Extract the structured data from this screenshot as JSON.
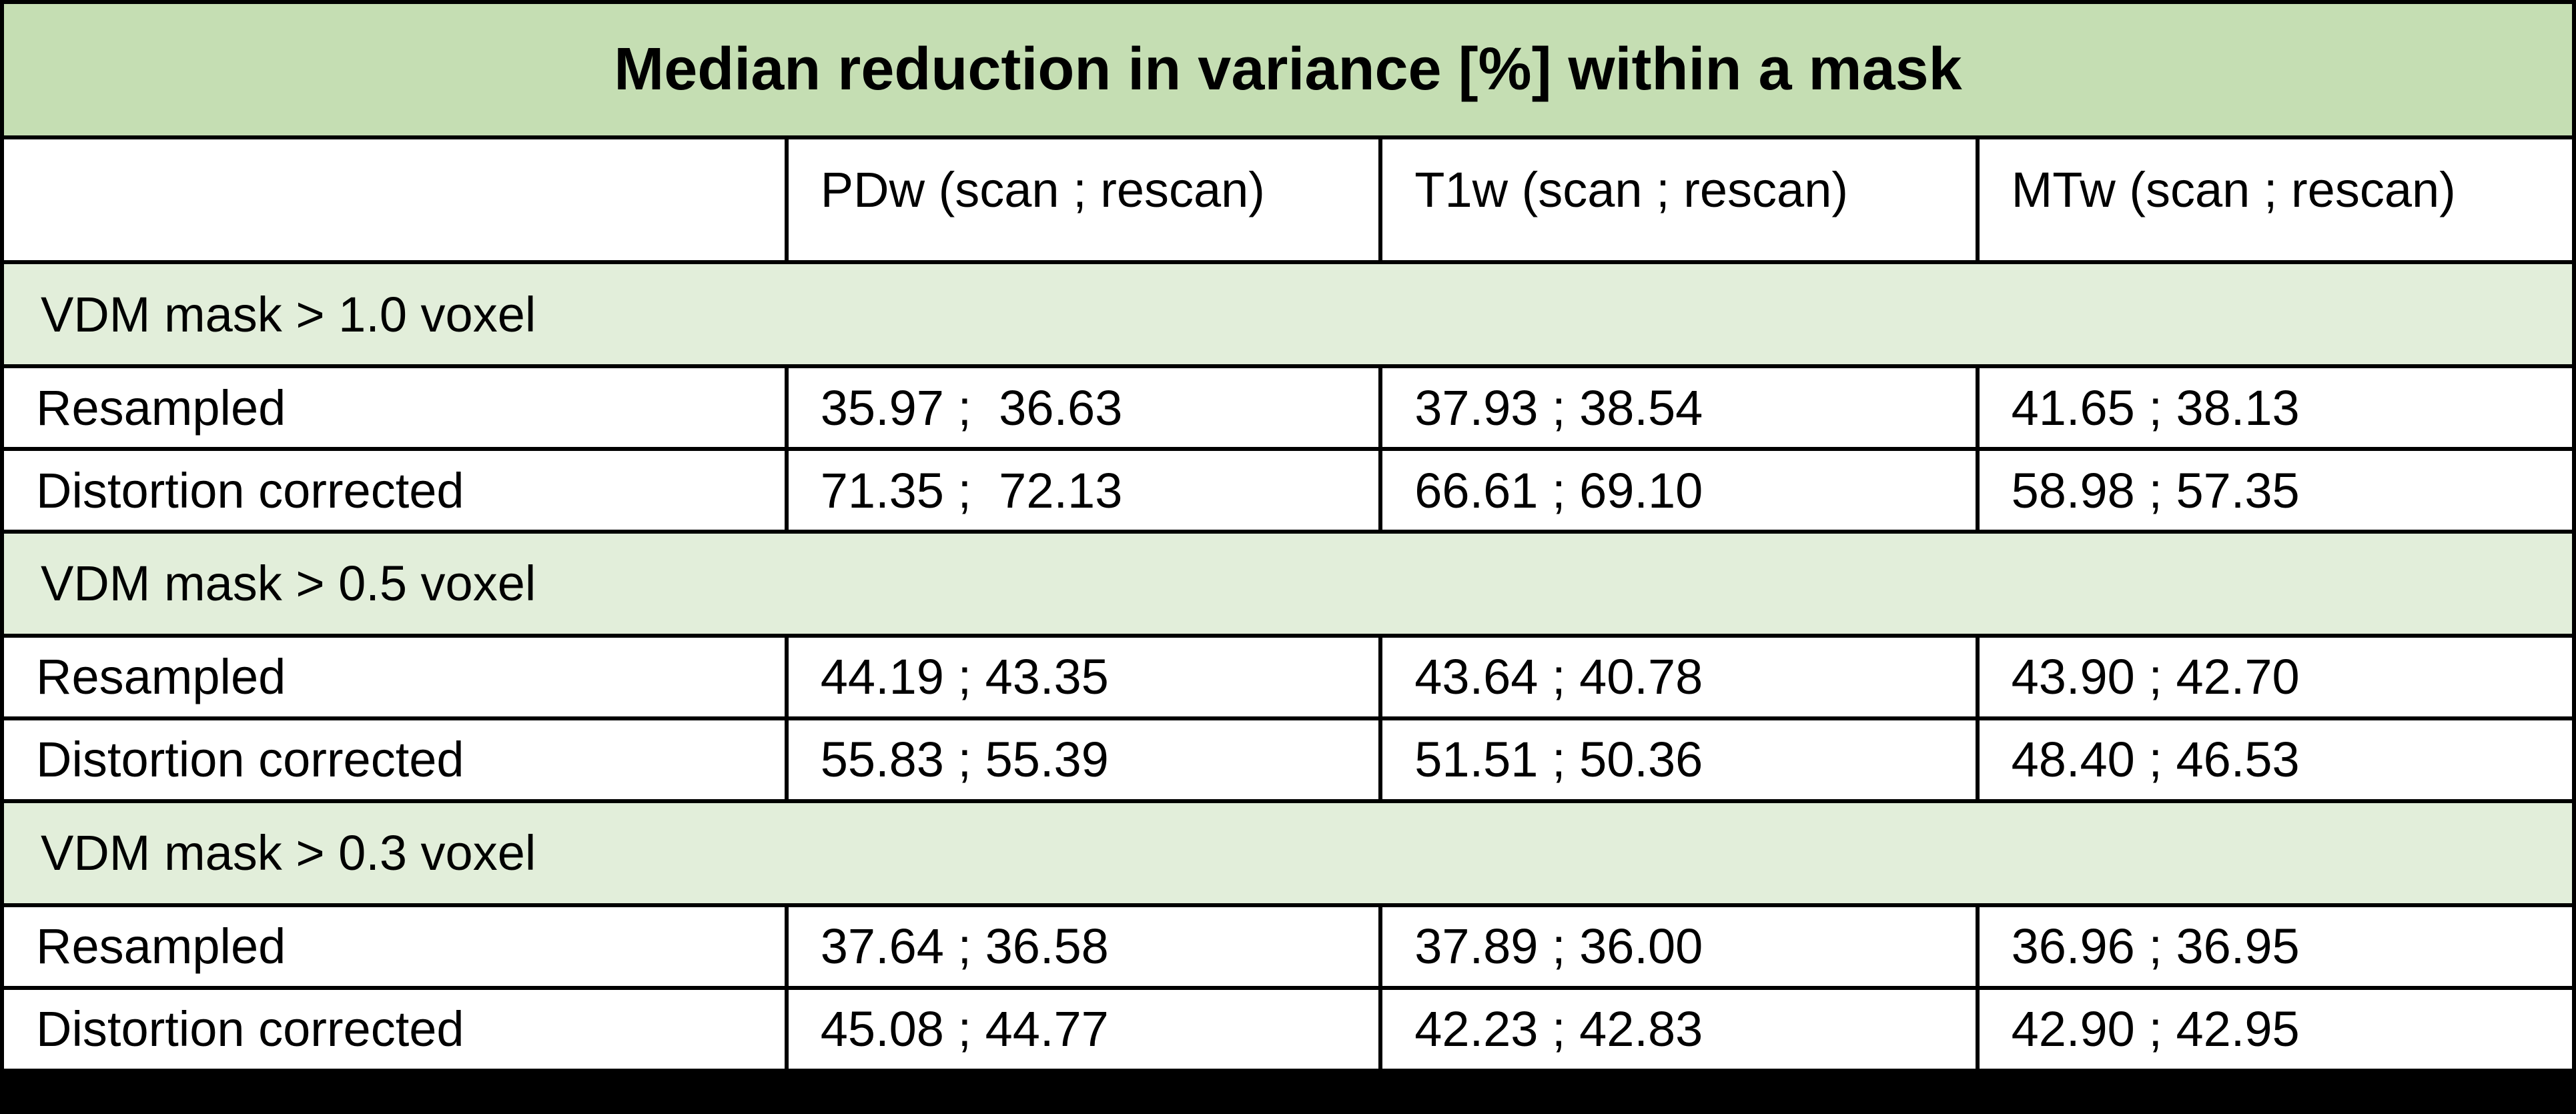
{
  "table": {
    "title": "Median reduction in variance [%] within a mask",
    "columns": [
      "",
      "PDw (scan ; rescan)",
      "T1w (scan ; rescan)",
      "MTw (scan ; rescan)"
    ],
    "sections": [
      {
        "label": "VDM mask > 1.0 voxel",
        "rows": [
          {
            "label": "Resampled",
            "values": [
              "35.97 ;  36.63",
              "37.93 ; 38.54",
              "41.65 ; 38.13"
            ]
          },
          {
            "label": "Distortion corrected",
            "values": [
              "71.35 ;  72.13",
              "66.61 ; 69.10",
              "58.98 ; 57.35"
            ]
          }
        ]
      },
      {
        "label": "VDM mask > 0.5 voxel",
        "rows": [
          {
            "label": "Resampled",
            "values": [
              "44.19 ; 43.35",
              "43.64 ; 40.78",
              "43.90 ; 42.70"
            ]
          },
          {
            "label": "Distortion corrected",
            "values": [
              "55.83 ; 55.39",
              "51.51 ; 50.36",
              "48.40 ; 46.53"
            ]
          }
        ]
      },
      {
        "label": "VDM mask > 0.3 voxel",
        "rows": [
          {
            "label": "Resampled",
            "values": [
              "37.64 ; 36.58",
              "37.89 ; 36.00",
              "36.96 ; 36.95"
            ]
          },
          {
            "label": "Distortion corrected",
            "values": [
              "45.08 ; 44.77",
              "42.23 ; 42.83",
              "42.90 ; 42.95"
            ]
          }
        ]
      }
    ]
  },
  "colors": {
    "title_bg": "#c5deb3",
    "section_bg": "#e2eeda",
    "cell_bg": "#ffffff",
    "border": "#000000",
    "text": "#000000"
  }
}
